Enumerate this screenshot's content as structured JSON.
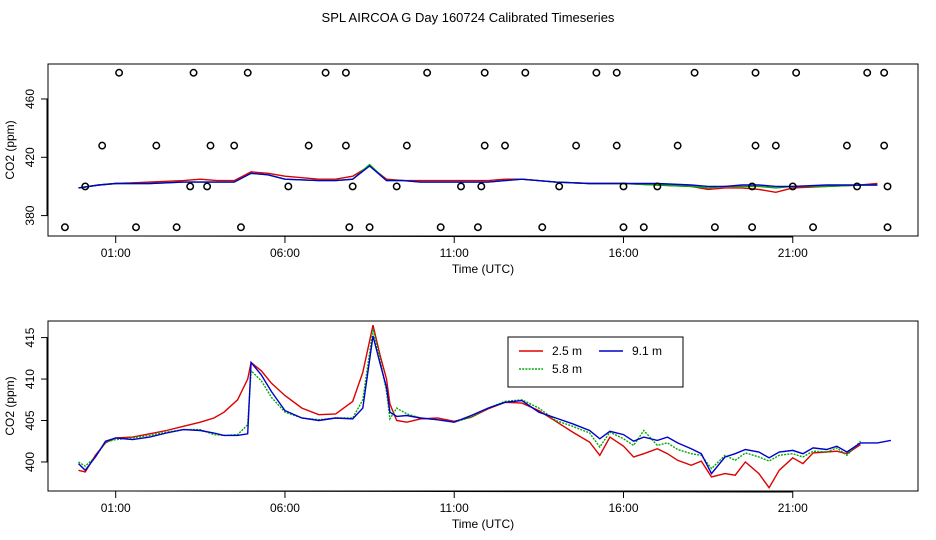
{
  "title": "SPL AIRCOA G  Day 160724  Calibrated Timeseries",
  "chart_data": [
    {
      "type": "line",
      "xlabel": "Time (UTC)",
      "ylabel": "CO2 (ppm)",
      "x_unit": "hours UTC",
      "xlim": [
        -1,
        24.7
      ],
      "ylim": [
        366,
        484
      ],
      "xticks": [
        1,
        6,
        11,
        16,
        21
      ],
      "xticklabels": [
        "01:00",
        "06:00",
        "11:00",
        "16:00",
        "21:00"
      ],
      "yticks": [
        380,
        420,
        460
      ],
      "yticklabels": [
        "380",
        "420",
        "460"
      ],
      "series": [
        {
          "color": "#dd0000",
          "x": [
            -0.1,
            0.5,
            1,
            2,
            3,
            3.5,
            4,
            4.5,
            5,
            5.5,
            6,
            7,
            7.5,
            8,
            8.5,
            9,
            9.5,
            10,
            11,
            12,
            12.5,
            13,
            14,
            15,
            16,
            17,
            18,
            18.5,
            19,
            19.5,
            20,
            20.5,
            21,
            22,
            23,
            23.5
          ],
          "values": [
            399,
            401,
            402,
            403,
            404,
            405,
            404,
            404,
            410,
            409,
            407,
            405,
            405,
            407,
            414,
            405,
            404,
            404,
            404,
            404,
            405,
            405,
            403,
            402,
            402,
            401,
            400,
            398,
            399,
            399,
            398,
            396,
            399,
            400,
            401,
            402
          ]
        },
        {
          "color": "#00aa00",
          "x": [
            -0.1,
            0.5,
            1,
            2,
            3,
            3.5,
            4,
            4.5,
            5,
            5.5,
            6,
            7,
            7.5,
            8,
            8.5,
            9,
            9.5,
            10,
            11,
            12,
            12.5,
            13,
            14,
            15,
            16,
            17,
            18,
            18.5,
            19,
            19.5,
            20,
            20.5,
            21,
            22,
            23,
            23.5
          ],
          "values": [
            399,
            401,
            402,
            402,
            403,
            403,
            403,
            403,
            409,
            408,
            405,
            404,
            404,
            405,
            415,
            404,
            404,
            403,
            403,
            403,
            404,
            405,
            403,
            402,
            402,
            401,
            400,
            399,
            400,
            400,
            400,
            399,
            400,
            400,
            401,
            401
          ]
        },
        {
          "color": "#0000cc",
          "x": [
            -0.1,
            0.5,
            1,
            2,
            3,
            3.5,
            4,
            4.5,
            5,
            5.5,
            6,
            7,
            7.5,
            8,
            8.5,
            9,
            9.5,
            10,
            11,
            12,
            12.5,
            13,
            14,
            15,
            16,
            17,
            18,
            18.5,
            19,
            19.5,
            20,
            20.5,
            21,
            22,
            23,
            23.5
          ],
          "values": [
            399,
            401,
            402,
            402,
            403,
            403,
            403,
            403,
            409,
            408,
            405,
            404,
            404,
            405,
            414,
            404,
            404,
            403,
            403,
            403,
            404,
            405,
            403,
            402,
            402,
            402,
            401,
            400,
            400,
            401,
            401,
            400,
            400,
            401,
            401,
            401
          ]
        }
      ],
      "markers": {
        "shape": "open-circle",
        "x": [
          1.1,
          3.3,
          4.9,
          7.2,
          7.8,
          10.2,
          11.9,
          13.1,
          15.2,
          15.8,
          18.1,
          19.9,
          21.1,
          23.2,
          23.7,
          0.6,
          2.2,
          3.8,
          4.5,
          6.7,
          7.8,
          9.6,
          11.9,
          12.5,
          14.6,
          15.8,
          17.6,
          19.9,
          20.5,
          22.6,
          23.7,
          0.1,
          3.2,
          3.7,
          6.1,
          8.0,
          9.3,
          11.2,
          11.8,
          14.1,
          16.0,
          17.0,
          19.8,
          21.0,
          22.9,
          23.8,
          -0.5,
          1.6,
          2.8,
          4.7,
          7.9,
          8.5,
          10.6,
          11.7,
          13.6,
          16.0,
          16.6,
          18.7,
          19.8,
          21.6,
          23.8
        ],
        "values": [
          478,
          478,
          478,
          478,
          478,
          478,
          478,
          478,
          478,
          478,
          478,
          478,
          478,
          478,
          478,
          428,
          428,
          428,
          428,
          428,
          428,
          428,
          428,
          428,
          428,
          428,
          428,
          428,
          428,
          428,
          428,
          400,
          400,
          400,
          400,
          400,
          400,
          400,
          400,
          400,
          400,
          400,
          400,
          400,
          400,
          400,
          372,
          372,
          372,
          372,
          372,
          372,
          372,
          372,
          372,
          372,
          372,
          372,
          372,
          372,
          372
        ]
      }
    },
    {
      "type": "line",
      "xlabel": "Time (UTC)",
      "ylabel": "CO2 (ppm)",
      "x_unit": "hours UTC",
      "xlim": [
        -1,
        24.7
      ],
      "ylim": [
        396.5,
        417
      ],
      "xticks": [
        1,
        6,
        11,
        16,
        21
      ],
      "xticklabels": [
        "01:00",
        "06:00",
        "11:00",
        "16:00",
        "21:00"
      ],
      "yticks": [
        400,
        405,
        410,
        415
      ],
      "yticklabels": [
        "400",
        "405",
        "410",
        "415"
      ],
      "legend": {
        "placement": "top-center",
        "entries": [
          "2.5 m",
          "5.8 m",
          "9.1 m"
        ]
      },
      "series": [
        {
          "name": "2.5 m",
          "color": "#dd0000",
          "x": [
            -0.1,
            0.1,
            0.4,
            0.7,
            1.0,
            1.5,
            2.0,
            2.5,
            3.0,
            3.5,
            3.9,
            4.2,
            4.6,
            4.9,
            5.0,
            5.3,
            5.6,
            6.0,
            6.5,
            7.0,
            7.5,
            8.0,
            8.3,
            8.6,
            8.8,
            9.0,
            9.1,
            9.3,
            9.6,
            10.0,
            10.5,
            11.0,
            11.5,
            12.0,
            12.5,
            13.0,
            13.5,
            14.0,
            14.5,
            15.0,
            15.3,
            15.6,
            16.0,
            16.3,
            16.6,
            17.0,
            17.3,
            17.6,
            18.0,
            18.3,
            18.6,
            19.0,
            19.3,
            19.6,
            20.0,
            20.3,
            20.6,
            21.0,
            21.3,
            21.6,
            22.0,
            22.3,
            22.6,
            23.0
          ],
          "values": [
            399.0,
            398.8,
            400.8,
            402.3,
            402.9,
            403.0,
            403.4,
            403.8,
            404.3,
            404.8,
            405.3,
            406.0,
            407.5,
            410.0,
            412.0,
            411.0,
            409.5,
            408.0,
            406.5,
            405.7,
            405.8,
            407.3,
            410.8,
            416.5,
            413.0,
            410.0,
            407.0,
            405.0,
            404.8,
            405.2,
            405.3,
            404.9,
            405.4,
            406.4,
            407.2,
            407.1,
            406.2,
            404.9,
            403.6,
            402.4,
            400.8,
            403.0,
            401.9,
            400.6,
            401.0,
            401.6,
            401.0,
            400.2,
            399.6,
            400.1,
            398.2,
            398.6,
            398.4,
            400.0,
            398.6,
            396.9,
            399.0,
            400.5,
            399.8,
            401.1,
            401.2,
            401.3,
            401.0,
            402.1
          ]
        },
        {
          "name": "5.8 m",
          "color": "#00aa00",
          "x": [
            -0.1,
            0.1,
            0.4,
            0.7,
            1.0,
            1.5,
            2.0,
            2.5,
            3.0,
            3.5,
            3.9,
            4.2,
            4.6,
            4.9,
            5.0,
            5.3,
            5.6,
            6.0,
            6.5,
            7.0,
            7.5,
            8.0,
            8.3,
            8.6,
            8.8,
            9.0,
            9.1,
            9.3,
            9.6,
            10.0,
            10.5,
            11.0,
            11.5,
            12.0,
            12.5,
            13.0,
            13.5,
            14.0,
            14.5,
            15.0,
            15.3,
            15.6,
            16.0,
            16.3,
            16.6,
            17.0,
            17.3,
            17.6,
            18.0,
            18.3,
            18.6,
            19.0,
            19.3,
            19.6,
            20.0,
            20.3,
            20.6,
            21.0,
            21.3,
            21.6,
            22.0,
            22.3,
            22.6,
            23.0
          ],
          "values": [
            400.0,
            399.5,
            400.6,
            402.4,
            402.7,
            402.9,
            403.2,
            403.6,
            403.9,
            403.9,
            403.3,
            403.2,
            403.3,
            404.5,
            411.0,
            409.8,
            407.8,
            406.0,
            405.3,
            405.1,
            405.3,
            405.3,
            407.5,
            416.0,
            412.5,
            408.5,
            405.2,
            406.5,
            405.8,
            405.3,
            405.1,
            404.8,
            405.4,
            406.5,
            407.3,
            407.5,
            406.5,
            405.0,
            404.3,
            403.5,
            401.8,
            403.6,
            402.8,
            402.0,
            403.8,
            402.0,
            402.3,
            401.5,
            401.0,
            400.8,
            399.2,
            400.8,
            400.2,
            401.1,
            400.6,
            400.1,
            400.8,
            401.0,
            400.6,
            401.3,
            401.2,
            401.7,
            400.8,
            402.5
          ]
        },
        {
          "name": "9.1 m",
          "color": "#0000cc",
          "x": [
            -0.1,
            0.1,
            0.4,
            0.7,
            1.0,
            1.5,
            2.0,
            2.5,
            3.0,
            3.5,
            3.9,
            4.2,
            4.6,
            4.9,
            5.0,
            5.3,
            5.6,
            6.0,
            6.5,
            7.0,
            7.5,
            8.0,
            8.3,
            8.6,
            8.8,
            9.0,
            9.1,
            9.3,
            9.6,
            10.0,
            10.5,
            11.0,
            11.5,
            12.0,
            12.5,
            13.0,
            13.5,
            14.0,
            14.5,
            15.0,
            15.3,
            15.6,
            16.0,
            16.3,
            16.6,
            17.0,
            17.3,
            17.6,
            18.0,
            18.3,
            18.6,
            19.0,
            19.3,
            19.6,
            20.0,
            20.3,
            20.6,
            21.0,
            21.3,
            21.6,
            22.0,
            22.3,
            22.6,
            23.0,
            23.5,
            23.9
          ],
          "values": [
            399.8,
            399.0,
            400.6,
            402.5,
            402.9,
            402.7,
            403.0,
            403.5,
            403.9,
            403.8,
            403.5,
            403.2,
            403.2,
            403.4,
            412.0,
            410.5,
            408.5,
            406.2,
            405.3,
            405.0,
            405.3,
            405.2,
            406.5,
            415.2,
            412.0,
            409.0,
            406.0,
            405.5,
            405.6,
            405.3,
            405.1,
            404.8,
            405.6,
            406.5,
            407.2,
            407.4,
            406.0,
            405.3,
            404.6,
            403.8,
            402.8,
            403.7,
            403.3,
            402.5,
            403.0,
            402.6,
            403.0,
            402.3,
            401.6,
            401.0,
            398.6,
            400.6,
            401.0,
            401.5,
            401.2,
            400.5,
            401.2,
            401.4,
            401.0,
            401.7,
            401.5,
            401.9,
            401.2,
            402.3,
            402.3,
            402.6
          ]
        }
      ]
    }
  ]
}
